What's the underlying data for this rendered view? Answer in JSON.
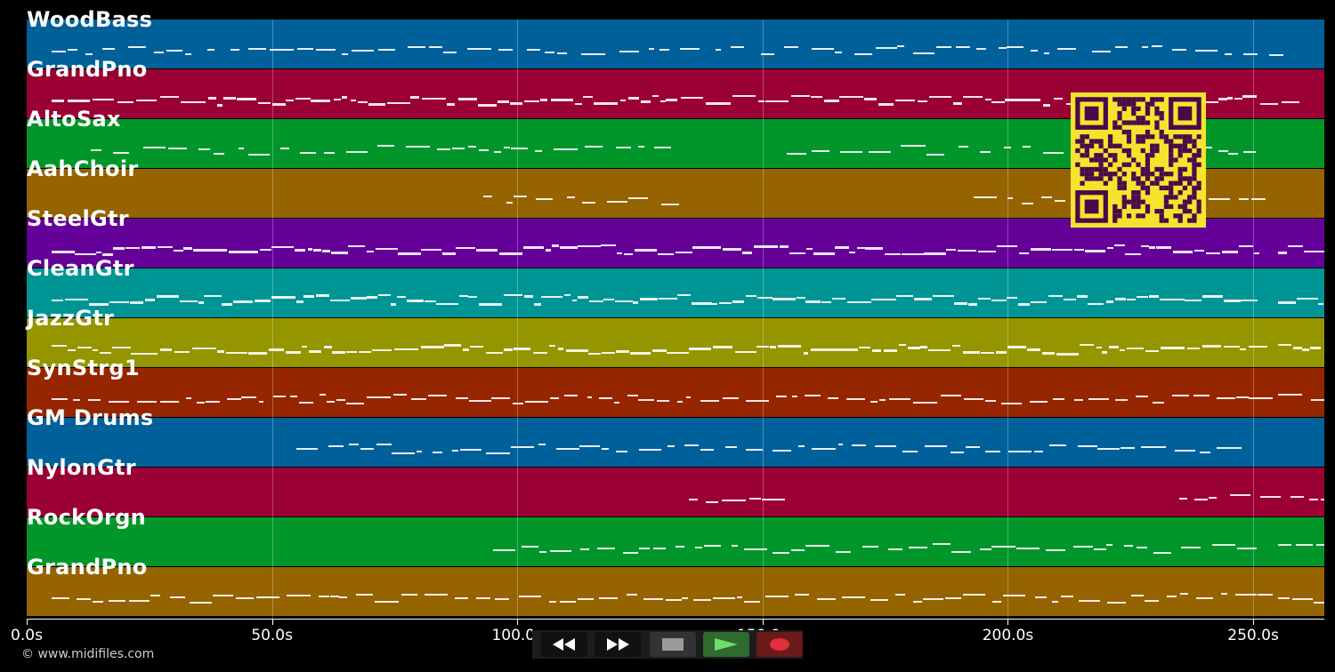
{
  "tracks": [
    {
      "name": "WoodBass",
      "color": "#00609a"
    },
    {
      "name": "GrandPno",
      "color": "#9a0033"
    },
    {
      "name": "AltoSax",
      "color": "#00962a"
    },
    {
      "name": "AahChoir",
      "color": "#956300"
    },
    {
      "name": "SteelGtr",
      "color": "#650099"
    },
    {
      "name": "CleanGtr",
      "color": "#009595"
    },
    {
      "name": "JazzGtr",
      "color": "#959500"
    },
    {
      "name": "SynStrg1",
      "color": "#952600"
    },
    {
      "name": "GM Drums",
      "color": "#00609a"
    },
    {
      "name": "NylonGtr",
      "color": "#9a0033"
    },
    {
      "name": "RockOrgn",
      "color": "#00962a"
    },
    {
      "name": "GrandPno",
      "color": "#956300"
    }
  ],
  "timeline": {
    "max_seconds": 264.5,
    "ticks": [
      {
        "value": 0,
        "label": "0.0s"
      },
      {
        "value": 50,
        "label": "50.0s"
      },
      {
        "value": 100,
        "label": "100.0s"
      },
      {
        "value": 150,
        "label": "150.0s"
      },
      {
        "value": 200,
        "label": "200.0s"
      },
      {
        "value": 250,
        "label": "250.0s"
      }
    ]
  },
  "footer": {
    "copyright": "© www.midifiles.com"
  },
  "transport": {
    "buttons": [
      {
        "icon": "rewind-icon",
        "color": "#ffffff"
      },
      {
        "icon": "fast-forward-icon",
        "color": "#ffffff"
      },
      {
        "icon": "stop-icon",
        "color": "#9a9a9a"
      },
      {
        "icon": "play-icon",
        "color": "#6fdc6f"
      },
      {
        "icon": "record-icon",
        "color": "#e0303a"
      }
    ]
  },
  "overlay": {
    "icon": "qr-code-icon",
    "color": "#f5e42e",
    "module_color": "#4a0a4a"
  }
}
